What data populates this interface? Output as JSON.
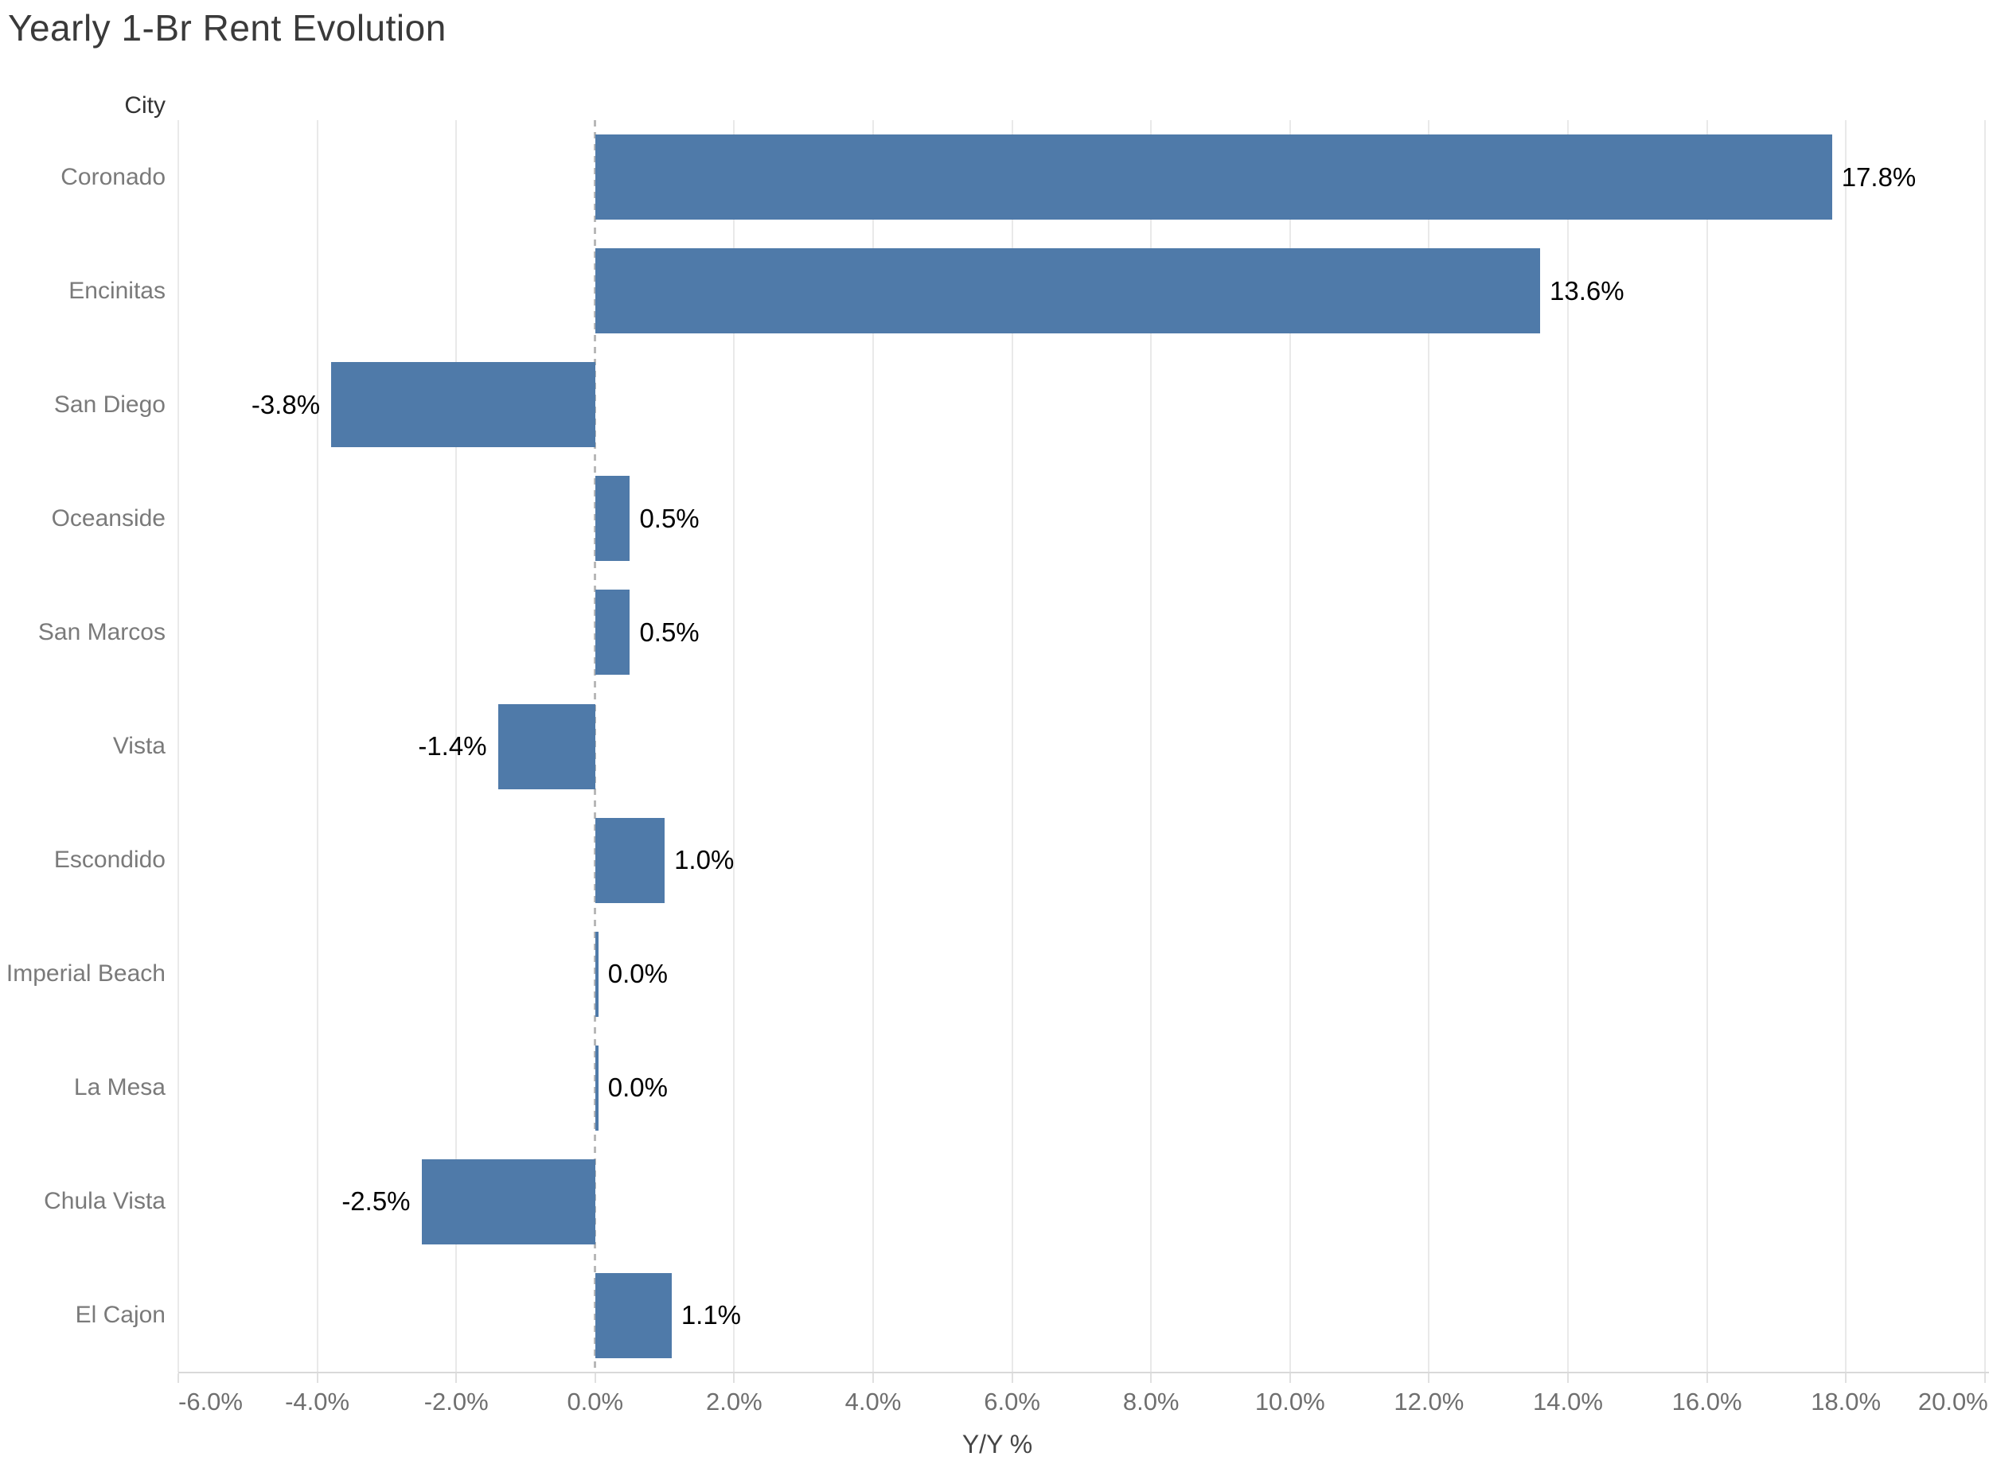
{
  "chart_data": {
    "type": "bar",
    "orientation": "horizontal",
    "title": "Yearly 1-Br Rent Evolution",
    "row_header": "City",
    "xlabel": "Y/Y %",
    "categories": [
      "Coronado",
      "Encinitas",
      "San Diego",
      "Oceanside",
      "San Marcos",
      "Vista",
      "Escondido",
      "Imperial Beach",
      "La Mesa",
      "Chula Vista",
      "El Cajon"
    ],
    "values": [
      17.8,
      13.6,
      -3.8,
      0.5,
      0.5,
      -1.4,
      1.0,
      0.0,
      0.0,
      -2.5,
      1.1
    ],
    "labels": [
      "17.8%",
      "13.6%",
      "-3.8%",
      "0.5%",
      "0.5%",
      "-1.4%",
      "1.0%",
      "0.0%",
      "0.0%",
      "-2.5%",
      "1.1%"
    ],
    "x_ticks": [
      "-6.0%",
      "-4.0%",
      "-2.0%",
      "0.0%",
      "2.0%",
      "4.0%",
      "6.0%",
      "8.0%",
      "10.0%",
      "12.0%",
      "14.0%",
      "16.0%",
      "18.0%",
      "20.0%"
    ],
    "x_tick_values": [
      -6,
      -4,
      -2,
      0,
      2,
      4,
      6,
      8,
      10,
      12,
      14,
      16,
      18,
      20
    ],
    "xlim": [
      -6,
      20.06
    ],
    "grid": true,
    "zero_line": "dashed",
    "legend": "none",
    "bar_color": "#4f7aa9"
  }
}
